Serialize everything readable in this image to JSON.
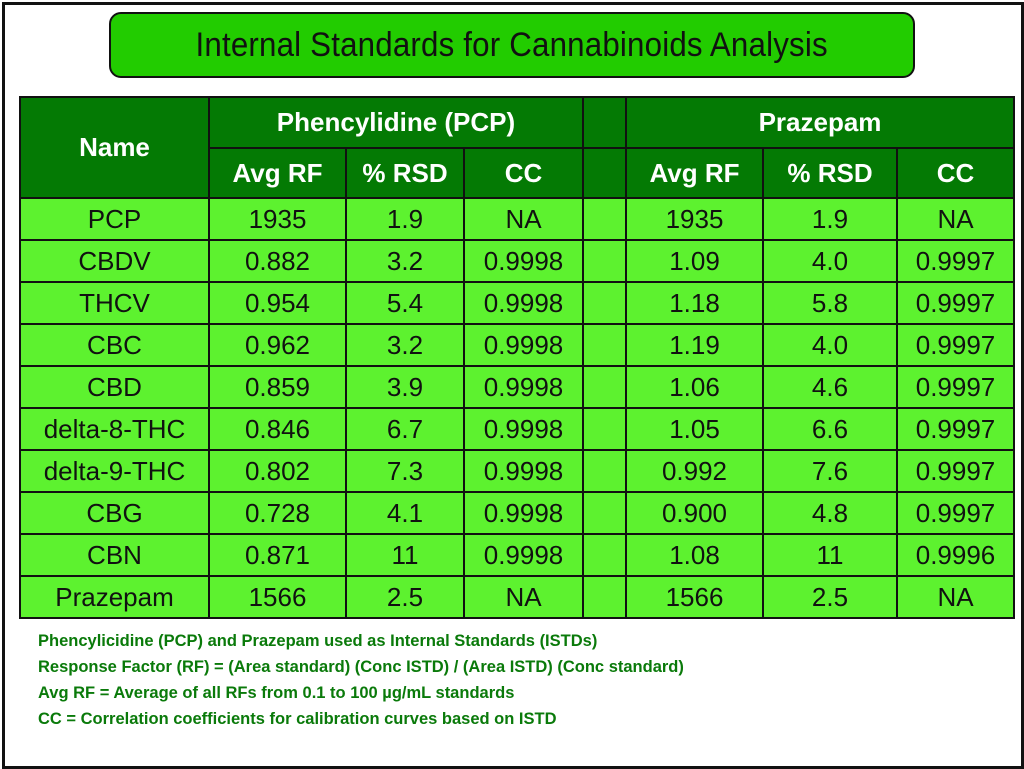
{
  "title": "Internal Standards for Cannabinoids Analysis",
  "table": {
    "name_header": "Name",
    "groups": [
      {
        "label": "Phencylidine (PCP)",
        "columns": [
          "Avg RF",
          "% RSD",
          "CC"
        ]
      },
      {
        "label": "Prazepam",
        "columns": [
          "Avg RF",
          "% RSD",
          "CC"
        ]
      }
    ],
    "rows": [
      {
        "name": "PCP",
        "pcp": [
          "1935",
          "1.9",
          "NA"
        ],
        "praz": [
          "1935",
          "1.9",
          "NA"
        ]
      },
      {
        "name": "CBDV",
        "pcp": [
          "0.882",
          "3.2",
          "0.9998"
        ],
        "praz": [
          "1.09",
          "4.0",
          "0.9997"
        ]
      },
      {
        "name": "THCV",
        "pcp": [
          "0.954",
          "5.4",
          "0.9998"
        ],
        "praz": [
          "1.18",
          "5.8",
          "0.9997"
        ]
      },
      {
        "name": "CBC",
        "pcp": [
          "0.962",
          "3.2",
          "0.9998"
        ],
        "praz": [
          "1.19",
          "4.0",
          "0.9997"
        ]
      },
      {
        "name": "CBD",
        "pcp": [
          "0.859",
          "3.9",
          "0.9998"
        ],
        "praz": [
          "1.06",
          "4.6",
          "0.9997"
        ]
      },
      {
        "name": "delta-8-THC",
        "pcp": [
          "0.846",
          "6.7",
          "0.9998"
        ],
        "praz": [
          "1.05",
          "6.6",
          "0.9997"
        ]
      },
      {
        "name": "delta-9-THC",
        "pcp": [
          "0.802",
          "7.3",
          "0.9998"
        ],
        "praz": [
          "0.992",
          "7.6",
          "0.9997"
        ]
      },
      {
        "name": "CBG",
        "pcp": [
          "0.728",
          "4.1",
          "0.9998"
        ],
        "praz": [
          "0.900",
          "4.8",
          "0.9997"
        ]
      },
      {
        "name": "CBN",
        "pcp": [
          "0.871",
          "11",
          "0.9998"
        ],
        "praz": [
          "1.08",
          "11",
          "0.9996"
        ]
      },
      {
        "name": "Prazepam",
        "pcp": [
          "1566",
          "2.5",
          "NA"
        ],
        "praz": [
          "1566",
          "2.5",
          "NA"
        ]
      }
    ]
  },
  "notes": [
    "Phencylicidine (PCP) and Prazepam used as Internal Standards (ISTDs)",
    "Response Factor (RF) = (Area standard) (Conc ISTD) / (Area ISTD) (Conc standard)",
    "Avg RF = Average of all RFs from 0.1 to 100 µg/mL standards",
    "CC = Correlation coefficients for calibration curves based on ISTD"
  ],
  "colors": {
    "title_bg": "#22cc00",
    "header_bg": "#047a04",
    "cell_bg": "#5df22f",
    "note_text": "#0a7a0a"
  }
}
